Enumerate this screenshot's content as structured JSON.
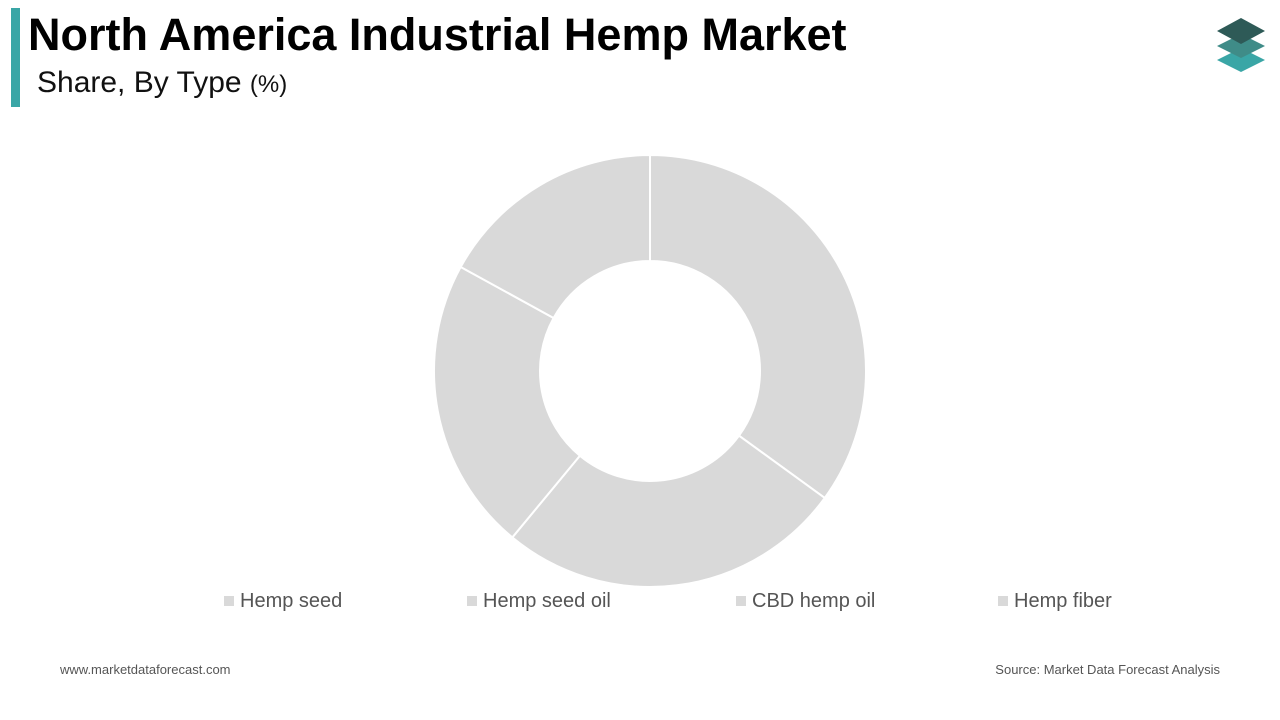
{
  "header": {
    "title": "North America Industrial Hemp Market",
    "subtitle": "Share, By Type",
    "unit": "(%)"
  },
  "logo": {
    "icon": "stacked-layers-logo-icon",
    "colors": [
      "#2e5a57",
      "#3f8c88",
      "#3aa6a6"
    ]
  },
  "chart_data": {
    "type": "pie",
    "style": "donut",
    "categories": [
      "Hemp seed",
      "Hemp seed oil",
      "CBD hemp oil",
      "Hemp fiber"
    ],
    "values": [
      35,
      26,
      22,
      17
    ],
    "slice_color": "#d9d9d9",
    "separator_color": "#ffffff",
    "legend_position": "bottom",
    "legend_swatch_color": "#d9d9d9",
    "data_labels": false
  },
  "footer": {
    "website": "www.marketdataforecast.com",
    "source": "Source: Market Data Forecast Analysis"
  },
  "colors": {
    "accent": "#3aa6a6",
    "text_muted": "#555555"
  }
}
